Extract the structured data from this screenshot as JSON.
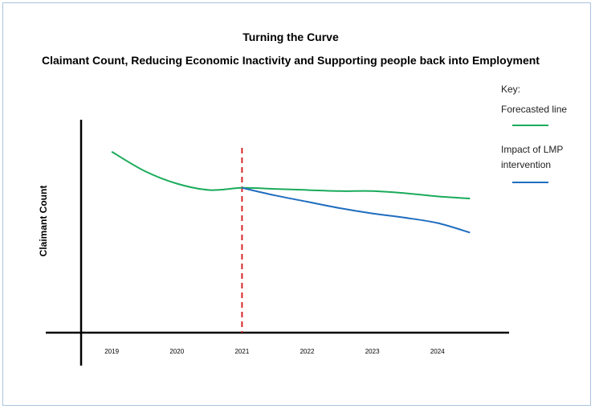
{
  "chart_data": {
    "type": "line",
    "title": "Turning the Curve",
    "subtitle": "Claimant Count, Reducing Economic Inactivity and Supporting people back into Employment",
    "ylabel": "Claimant Count",
    "xlabel": "",
    "categories": [
      "2019",
      "2020",
      "2021",
      "2022",
      "2023",
      "2024"
    ],
    "xlim": [
      2018.53,
      2025.1
    ],
    "ylim": [
      0,
      100
    ],
    "legend": {
      "title": "Key:",
      "position": "top-right"
    },
    "series": [
      {
        "name": "Forecasted line",
        "color": "#1aab5a",
        "points": [
          [
            2019.0,
            85
          ],
          [
            2019.5,
            76
          ],
          [
            2020.0,
            70
          ],
          [
            2020.5,
            67
          ],
          [
            2021.0,
            68
          ],
          [
            2021.5,
            67.5
          ],
          [
            2022.0,
            67
          ],
          [
            2022.5,
            66.5
          ],
          [
            2023.0,
            66.5
          ],
          [
            2023.5,
            65.5
          ],
          [
            2024.0,
            64
          ],
          [
            2024.5,
            63
          ]
        ]
      },
      {
        "name": "Impact of LMP intervention",
        "color": "#1f6dbf",
        "points": [
          [
            2021.0,
            68
          ],
          [
            2021.5,
            64.5
          ],
          [
            2022.0,
            61.5
          ],
          [
            2022.5,
            58.5
          ],
          [
            2023.0,
            56
          ],
          [
            2023.5,
            54
          ],
          [
            2024.0,
            51.5
          ],
          [
            2024.5,
            47
          ]
        ]
      }
    ],
    "marker_line": {
      "x": 2021.0,
      "color": "#d62728",
      "style": "dashed"
    },
    "grid": false
  }
}
